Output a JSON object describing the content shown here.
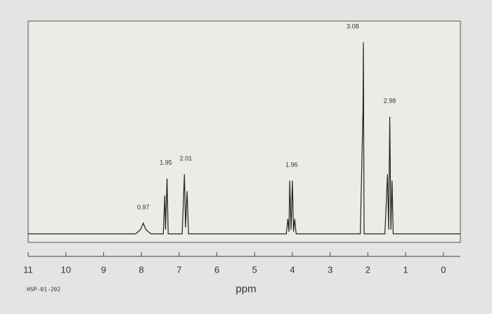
{
  "chart_data": {
    "type": "line",
    "x_label": "ppm",
    "footer": "HSP-01-202",
    "xlim": [
      11,
      -0.45
    ],
    "ylim": [
      -4,
      100
    ],
    "reverse_x": true,
    "grid": false,
    "color": "#222222",
    "xticks": [
      11,
      10,
      9,
      8,
      7,
      6,
      5,
      4,
      3,
      2,
      1,
      0
    ],
    "x": [
      11.0,
      8.15,
      8.02,
      7.95,
      7.88,
      7.75,
      7.42,
      7.38,
      7.36,
      7.32,
      7.29,
      6.92,
      6.86,
      6.83,
      6.79,
      6.75,
      4.16,
      4.12,
      4.09,
      4.07,
      4.035,
      4.0,
      3.97,
      3.94,
      3.9,
      2.2,
      2.13,
      2.12,
      2.1,
      1.55,
      1.48,
      1.45,
      1.42,
      1.39,
      1.36,
      1.33,
      0.0,
      -0.45
    ],
    "values": [
      0,
      0,
      2,
      5,
      2,
      0,
      0,
      18,
      2,
      26,
      0,
      0,
      28,
      3,
      20,
      0,
      0,
      7,
      1,
      25,
      2,
      25,
      1,
      7,
      0,
      0,
      58,
      90,
      0,
      0,
      28,
      2,
      55,
      2,
      25,
      0,
      0,
      0
    ],
    "integrals": [
      {
        "ppm": 7.95,
        "value": 0.97
      },
      {
        "ppm": 7.35,
        "value": 1.95
      },
      {
        "ppm": 6.82,
        "value": 2.01
      },
      {
        "ppm": 4.02,
        "value": 1.96
      },
      {
        "ppm": 2.4,
        "value": 3.08
      },
      {
        "ppm": 1.42,
        "value": 2.98
      }
    ]
  }
}
